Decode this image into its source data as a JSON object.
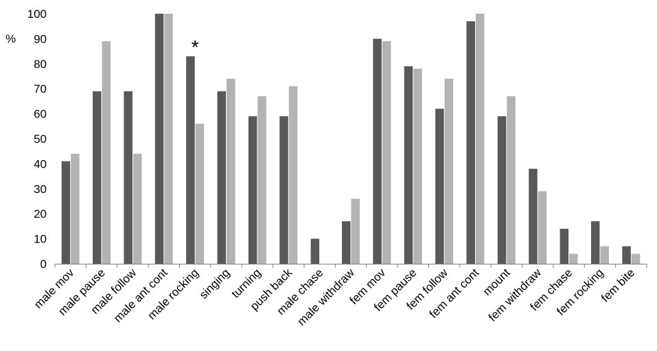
{
  "chart_data": {
    "type": "bar",
    "title": "",
    "xlabel": "",
    "ylabel": "%",
    "ylim": [
      0,
      100
    ],
    "yticks": [
      0,
      10,
      20,
      30,
      40,
      50,
      60,
      70,
      80,
      90,
      100
    ],
    "grid": false,
    "legend": "none",
    "categories": [
      "male mov",
      "male pause",
      "male follow",
      "male ant cont",
      "male rocking",
      "singing",
      "turning",
      "push back",
      "male chase",
      "male withdraw",
      "fem mov",
      "fem pause",
      "fem follow",
      "fem ant cont",
      "mount",
      "fem withdraw",
      "fem chase",
      "fem rocking",
      "fem bite"
    ],
    "series": [
      {
        "color": "#595959",
        "values": [
          41,
          69,
          69,
          100,
          83,
          69,
          59,
          59,
          10,
          17,
          90,
          79,
          62,
          97,
          59,
          38,
          14,
          17,
          7
        ]
      },
      {
        "color": "#b3b3b3",
        "values": [
          44,
          89,
          44,
          100,
          56,
          74,
          67,
          71,
          0,
          26,
          89,
          78,
          74,
          100,
          67,
          29,
          4,
          7,
          4
        ]
      }
    ],
    "annotations": [
      {
        "text": "*",
        "category": "male rocking"
      }
    ]
  }
}
